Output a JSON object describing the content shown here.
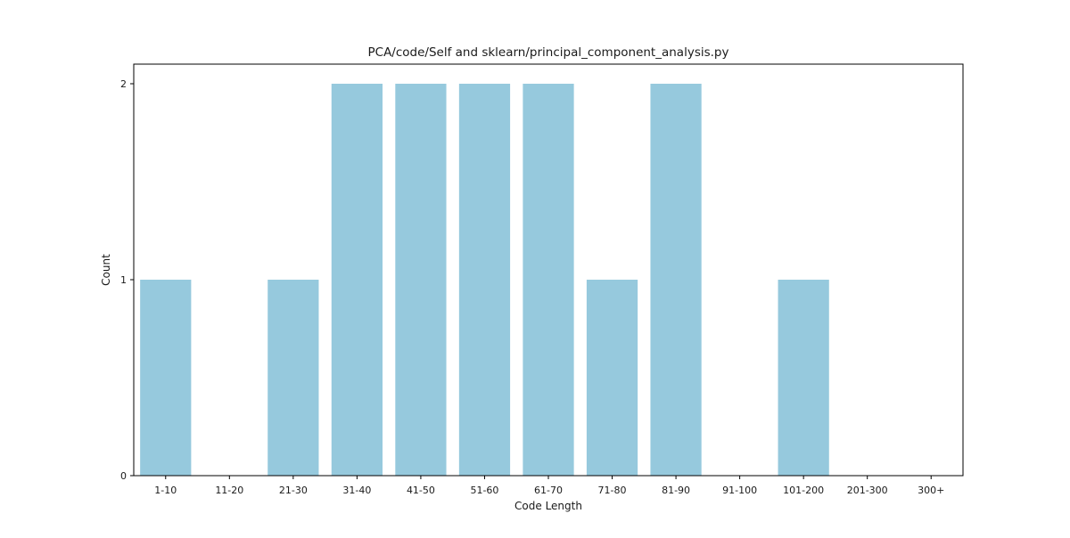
{
  "chart_data": {
    "type": "bar",
    "title": "PCA/code/Self and sklearn/principal_component_analysis.py",
    "xlabel": "Code Length",
    "ylabel": "Count",
    "categories": [
      "1-10",
      "11-20",
      "21-30",
      "31-40",
      "41-50",
      "51-60",
      "61-70",
      "71-80",
      "81-90",
      "91-100",
      "101-200",
      "201-300",
      "300+"
    ],
    "values": [
      1,
      0,
      1,
      2,
      2,
      2,
      2,
      1,
      2,
      0,
      1,
      0,
      0
    ],
    "ylim": [
      0,
      2.1
    ],
    "yticks": [
      0,
      1,
      2
    ],
    "grid": false,
    "legend": "none",
    "bar_color": "#96c9dd"
  }
}
